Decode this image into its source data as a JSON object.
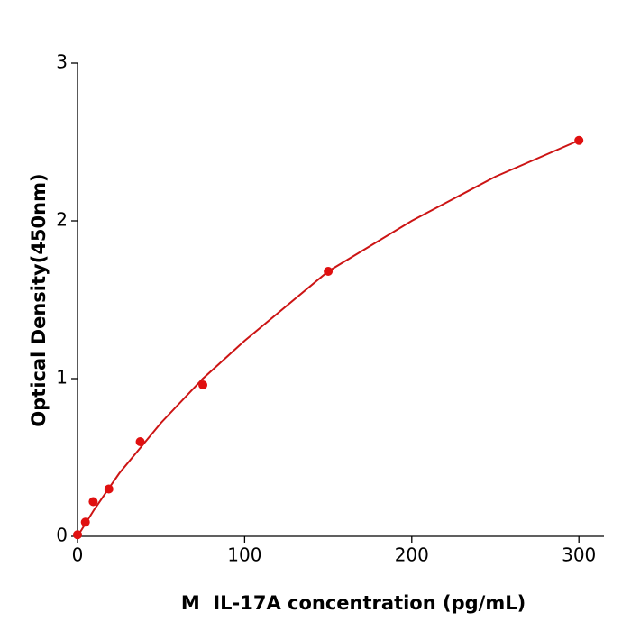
{
  "chart_data": {
    "type": "scatter",
    "xlabel": "M  IL-17A concentration (pg/mL)",
    "ylabel": "Optical Density(450nm)",
    "x": [
      0,
      4.69,
      9.38,
      18.75,
      37.5,
      75,
      150,
      300
    ],
    "values": [
      0.01,
      0.09,
      0.22,
      0.3,
      0.6,
      0.96,
      1.68,
      2.51
    ],
    "color": "#e01010",
    "fit": {
      "color": "#cc1414",
      "x": [
        0,
        10,
        25,
        50,
        75,
        100,
        150,
        200,
        250,
        300
      ],
      "values": [
        0,
        0.17,
        0.4,
        0.72,
        1.0,
        1.24,
        1.68,
        2.0,
        2.28,
        2.51
      ]
    },
    "xlim": [
      0,
      315
    ],
    "ylim": [
      0,
      3
    ],
    "xticks": [
      0,
      100,
      200,
      300
    ],
    "yticks": [
      0,
      1,
      2,
      3
    ]
  }
}
